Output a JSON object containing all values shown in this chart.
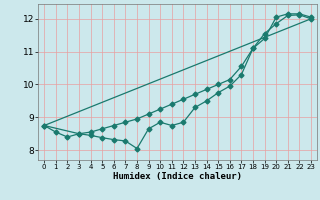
{
  "xlabel": "Humidex (Indice chaleur)",
  "ylabel": "",
  "background_color": "#cce8ec",
  "grid_color": "#e8a0a0",
  "line_color": "#1a7a6e",
  "xlim": [
    -0.5,
    23.5
  ],
  "ylim": [
    7.7,
    12.45
  ],
  "yticks": [
    8,
    9,
    10,
    11,
    12
  ],
  "xticks": [
    0,
    1,
    2,
    3,
    4,
    5,
    6,
    7,
    8,
    9,
    10,
    11,
    12,
    13,
    14,
    15,
    16,
    17,
    18,
    19,
    20,
    21,
    22,
    23
  ],
  "line1_x": [
    0,
    1,
    2,
    3,
    4,
    5,
    6,
    7,
    8,
    9,
    10,
    11,
    12,
    13,
    14,
    15,
    16,
    17,
    18,
    19,
    20,
    21,
    22,
    23
  ],
  "line1_y": [
    8.75,
    8.55,
    8.4,
    8.5,
    8.45,
    8.38,
    8.32,
    8.28,
    8.05,
    8.65,
    8.85,
    8.75,
    8.85,
    9.3,
    9.5,
    9.75,
    9.95,
    10.3,
    11.1,
    11.4,
    12.05,
    12.15,
    12.15,
    12.05
  ],
  "line2_x": [
    0,
    3,
    4,
    5,
    6,
    7,
    8,
    9,
    10,
    11,
    12,
    13,
    14,
    15,
    16,
    17,
    18,
    19,
    20,
    21,
    22,
    23
  ],
  "line2_y": [
    8.75,
    8.5,
    8.55,
    8.65,
    8.75,
    8.85,
    8.95,
    9.1,
    9.25,
    9.4,
    9.55,
    9.7,
    9.85,
    10.0,
    10.15,
    10.55,
    11.1,
    11.55,
    11.85,
    12.1,
    12.12,
    12.0
  ],
  "line3_x": [
    0,
    23
  ],
  "line3_y": [
    8.75,
    12.0
  ]
}
